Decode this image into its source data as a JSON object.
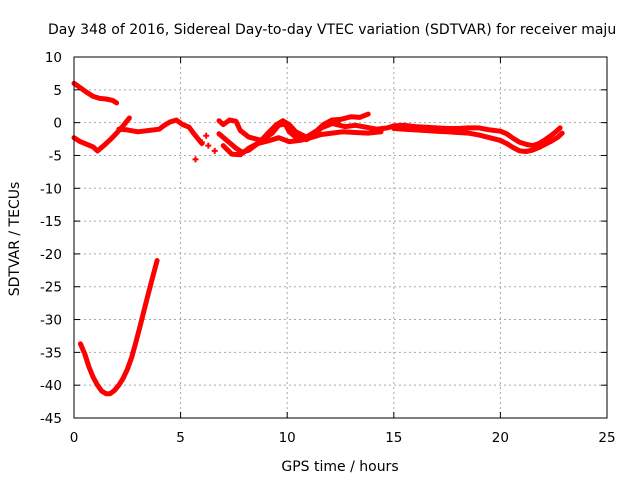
{
  "chart_data": {
    "type": "scatter",
    "title": "Day 348 of 2016, Sidereal Day-to-day VTEC variation (SDTVAR) for receiver maju",
    "xlabel": "GPS time / hours",
    "ylabel": "SDTVAR / TECUs",
    "xlim": [
      0,
      25
    ],
    "ylim": [
      -45,
      10
    ],
    "xticks": [
      0,
      5,
      10,
      15,
      20,
      25
    ],
    "yticks": [
      10,
      5,
      0,
      -5,
      -10,
      -15,
      -20,
      -25,
      -30,
      -35,
      -40,
      -45
    ],
    "grid": true,
    "legend": "none",
    "color": "#ff0000",
    "series": [
      {
        "name": "early-high-track",
        "points": [
          [
            0.0,
            6.0
          ],
          [
            0.3,
            5.3
          ],
          [
            0.6,
            4.6
          ],
          [
            0.9,
            4.0
          ],
          [
            1.2,
            3.7
          ],
          [
            1.5,
            3.6
          ],
          [
            1.8,
            3.4
          ],
          [
            2.0,
            3.0
          ]
        ]
      },
      {
        "name": "early-low-track",
        "points": [
          [
            0.0,
            -2.3
          ],
          [
            0.3,
            -2.9
          ],
          [
            0.6,
            -3.3
          ],
          [
            0.9,
            -3.7
          ],
          [
            1.1,
            -4.3
          ],
          [
            1.4,
            -3.5
          ],
          [
            1.7,
            -2.6
          ],
          [
            2.0,
            -1.6
          ],
          [
            2.3,
            -0.5
          ],
          [
            2.6,
            0.7
          ]
        ]
      },
      {
        "name": "midday-track",
        "points": [
          [
            2.1,
            -1.0
          ],
          [
            2.5,
            -1.1
          ],
          [
            3.0,
            -1.4
          ],
          [
            3.5,
            -1.2
          ],
          [
            4.0,
            -1.0
          ],
          [
            4.2,
            -0.5
          ],
          [
            4.5,
            0.1
          ],
          [
            4.8,
            0.4
          ],
          [
            5.1,
            -0.3
          ],
          [
            5.4,
            -0.7
          ],
          [
            5.6,
            -1.6
          ],
          [
            5.8,
            -2.4
          ],
          [
            6.0,
            -3.2
          ]
        ]
      },
      {
        "name": "isolated-points",
        "points": [
          [
            5.7,
            -5.6
          ],
          [
            6.0,
            -3.0
          ],
          [
            6.2,
            -2.0
          ],
          [
            6.6,
            -4.3
          ],
          [
            6.3,
            -3.5
          ]
        ]
      },
      {
        "name": "afternoon-track-a",
        "points": [
          [
            6.8,
            0.3
          ],
          [
            7.0,
            -0.3
          ],
          [
            7.3,
            0.4
          ],
          [
            7.6,
            0.2
          ],
          [
            7.8,
            -1.2
          ],
          [
            8.2,
            -2.2
          ],
          [
            8.8,
            -2.7
          ],
          [
            9.3,
            -1.6
          ],
          [
            9.6,
            -0.4
          ],
          [
            9.9,
            -0.2
          ],
          [
            10.1,
            -1.4
          ],
          [
            10.4,
            -2.2
          ],
          [
            10.9,
            -2.6
          ],
          [
            11.3,
            -1.8
          ],
          [
            11.6,
            -0.8
          ],
          [
            12.0,
            -0.3
          ],
          [
            12.4,
            0.2
          ]
        ]
      },
      {
        "name": "afternoon-track-b",
        "points": [
          [
            6.8,
            -1.7
          ],
          [
            7.2,
            -2.8
          ],
          [
            7.6,
            -3.9
          ],
          [
            7.9,
            -4.5
          ],
          [
            8.2,
            -4.2
          ],
          [
            8.7,
            -3.0
          ],
          [
            9.1,
            -1.6
          ],
          [
            9.5,
            -0.3
          ],
          [
            9.8,
            0.3
          ],
          [
            10.1,
            -0.3
          ],
          [
            10.4,
            -1.4
          ],
          [
            10.9,
            -2.2
          ],
          [
            11.4,
            -1.2
          ],
          [
            11.7,
            -0.3
          ],
          [
            12.1,
            0.4
          ],
          [
            12.5,
            0.5
          ],
          [
            13.0,
            0.9
          ],
          [
            13.4,
            0.8
          ],
          [
            13.8,
            1.3
          ]
        ]
      },
      {
        "name": "afternoon-track-c",
        "points": [
          [
            7.0,
            -3.5
          ],
          [
            7.4,
            -4.8
          ],
          [
            7.8,
            -4.9
          ],
          [
            8.2,
            -3.9
          ],
          [
            8.6,
            -3.2
          ],
          [
            9.1,
            -2.8
          ],
          [
            9.6,
            -2.3
          ],
          [
            10.1,
            -2.9
          ],
          [
            10.6,
            -2.7
          ],
          [
            11.1,
            -2.3
          ],
          [
            11.6,
            -1.8
          ],
          [
            12.1,
            -1.6
          ],
          [
            12.6,
            -1.4
          ],
          [
            13.2,
            -1.5
          ],
          [
            13.8,
            -1.6
          ],
          [
            14.4,
            -1.4
          ]
        ]
      },
      {
        "name": "afternoon-track-d",
        "points": [
          [
            12.2,
            -0.2
          ],
          [
            12.7,
            -0.6
          ],
          [
            13.2,
            -0.4
          ],
          [
            13.7,
            -0.7
          ],
          [
            14.2,
            -1.0
          ],
          [
            14.7,
            -0.8
          ],
          [
            15.0,
            -0.5
          ]
        ]
      },
      {
        "name": "evening-track-upper",
        "points": [
          [
            15.0,
            -0.5
          ],
          [
            15.5,
            -0.4
          ],
          [
            16.0,
            -0.6
          ],
          [
            16.5,
            -0.7
          ],
          [
            17.0,
            -0.8
          ],
          [
            17.5,
            -0.9
          ],
          [
            18.0,
            -0.9
          ],
          [
            18.5,
            -0.8
          ],
          [
            19.0,
            -0.8
          ],
          [
            19.5,
            -1.1
          ],
          [
            20.0,
            -1.3
          ],
          [
            20.3,
            -1.7
          ],
          [
            20.6,
            -2.4
          ],
          [
            20.9,
            -3.0
          ],
          [
            21.2,
            -3.3
          ],
          [
            21.5,
            -3.5
          ],
          [
            21.8,
            -3.2
          ],
          [
            22.1,
            -2.6
          ],
          [
            22.4,
            -1.9
          ],
          [
            22.6,
            -1.4
          ],
          [
            22.8,
            -0.8
          ]
        ]
      },
      {
        "name": "evening-track-lower",
        "points": [
          [
            15.0,
            -0.9
          ],
          [
            15.5,
            -1.0
          ],
          [
            16.0,
            -1.1
          ],
          [
            16.5,
            -1.2
          ],
          [
            17.0,
            -1.3
          ],
          [
            17.5,
            -1.4
          ],
          [
            18.0,
            -1.5
          ],
          [
            18.5,
            -1.6
          ],
          [
            19.0,
            -1.9
          ],
          [
            19.5,
            -2.3
          ],
          [
            20.0,
            -2.7
          ],
          [
            20.3,
            -3.2
          ],
          [
            20.6,
            -3.8
          ],
          [
            20.9,
            -4.3
          ],
          [
            21.2,
            -4.4
          ],
          [
            21.5,
            -4.2
          ],
          [
            21.8,
            -3.8
          ],
          [
            22.1,
            -3.3
          ],
          [
            22.4,
            -2.8
          ],
          [
            22.7,
            -2.2
          ],
          [
            22.9,
            -1.6
          ]
        ]
      },
      {
        "name": "morning-dip",
        "points": [
          [
            0.3,
            -33.7
          ],
          [
            0.5,
            -35.2
          ],
          [
            0.7,
            -37.2
          ],
          [
            0.9,
            -38.8
          ],
          [
            1.1,
            -40.0
          ],
          [
            1.3,
            -40.9
          ],
          [
            1.5,
            -41.3
          ],
          [
            1.7,
            -41.3
          ],
          [
            1.9,
            -40.8
          ],
          [
            2.1,
            -40.0
          ],
          [
            2.3,
            -39.0
          ],
          [
            2.5,
            -37.6
          ],
          [
            2.7,
            -35.8
          ],
          [
            2.9,
            -33.5
          ],
          [
            3.1,
            -31.0
          ],
          [
            3.3,
            -28.4
          ],
          [
            3.5,
            -25.9
          ],
          [
            3.7,
            -23.4
          ],
          [
            3.9,
            -21.0
          ]
        ]
      }
    ]
  }
}
